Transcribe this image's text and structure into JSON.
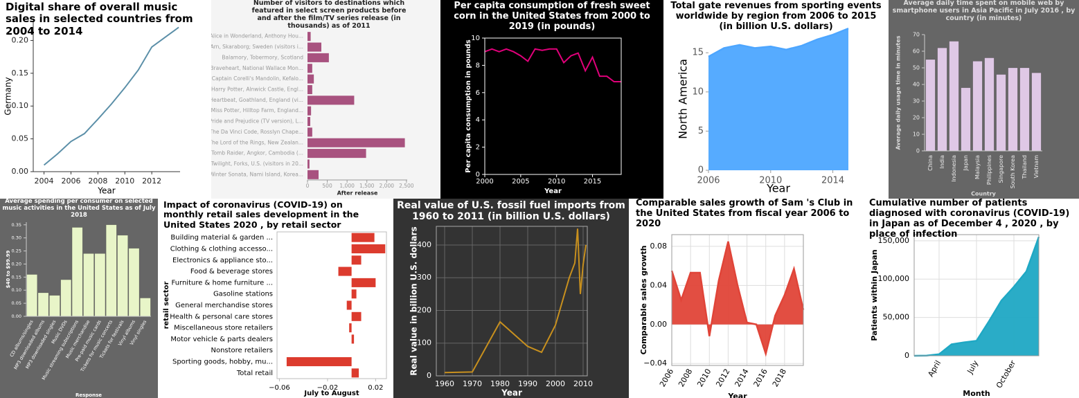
{
  "chart_data": [
    {
      "type": "line",
      "title": "Digital share of overall music sales in selected countries from 2004 to 2014",
      "x_label": "Year",
      "y_label": "Germany",
      "x": [
        2004,
        2005,
        2006,
        2007,
        2008,
        2009,
        2010,
        2011,
        2012,
        2013,
        2014
      ],
      "values": [
        0.01,
        0.027,
        0.046,
        0.058,
        0.08,
        0.103,
        0.128,
        0.155,
        0.19,
        0.205,
        0.22
      ],
      "color": "#5b8fa8",
      "xlim": [
        2003.2,
        2014.1
      ],
      "xticks": [
        2004,
        2006,
        2008,
        2010,
        2012
      ],
      "ylim": [
        0,
        0.23
      ],
      "yticks": [
        {
          "value": 0,
          "label": "0.00"
        },
        {
          "value": 0.05,
          "label": "0.05"
        },
        {
          "value": 0.1,
          "label": "0.10"
        },
        {
          "value": 0.15,
          "label": "0.15"
        },
        {
          "value": 0.2,
          "label": "0.20"
        }
      ],
      "grid": false
    },
    {
      "type": "barh",
      "title": "Number of visitors to destinations which featured in select screen products before and after the film/TV series release (in thousands) as of 2011",
      "x_label": "After release",
      "categories": [
        "Alice in Wonderland, Anthony Hou...",
        "Arn, Skaraborg; Sweden (visitors i...",
        "Balamory, Tobermory, Scotland",
        "Braveheart, National Wallace Mon...",
        "Captain Corelli's Mandolin, Kefalo...",
        "Harry Potter, Alnwick Castle, Engl...",
        "Heartbeat, Goathland, England (vi...",
        "Miss Potter, Hilltop Farm, England...",
        "Pride and Prejudice (TV version), L...",
        "The Da Vinci Code, Rosslyn Chape...",
        "The Lord of the Rings, New Zealan...",
        "Tomb Raider, Angkor, Cambodia (...",
        "Twilight, Forks, U.S. (visitors in 20...",
        "Winter Sonata, Nami Island, Korea..."
      ],
      "values": [
        80,
        350,
        540,
        120,
        160,
        120,
        1180,
        90,
        70,
        120,
        2460,
        1480,
        50,
        280
      ],
      "color": "#a8527f",
      "xlim": [
        0,
        2520
      ],
      "xticks": [
        0,
        500,
        {
          "value": 1000,
          "label": "1,000"
        },
        {
          "value": 1500,
          "label": "1,500"
        },
        {
          "value": 2000,
          "label": "2,000"
        },
        {
          "value": 2500,
          "label": "2,500"
        }
      ],
      "grid": false
    },
    {
      "type": "line",
      "title": "Per capita consumption of fresh sweet corn in the United States from 2000 to 2019 (in pounds)",
      "x_label": "Year",
      "y_label": "Per capita consumption in pounds",
      "x": [
        2000,
        2001,
        2002,
        2003,
        2004,
        2005,
        2006,
        2007,
        2008,
        2009,
        2010,
        2011,
        2012,
        2013,
        2014,
        2015,
        2016,
        2017,
        2018,
        2019
      ],
      "values": [
        9.0,
        9.2,
        9.0,
        9.2,
        9.0,
        8.7,
        8.3,
        9.2,
        9.1,
        9.2,
        9.2,
        8.2,
        8.7,
        8.9,
        7.6,
        8.6,
        7.2,
        7.2,
        6.8,
        6.8
      ],
      "color": "#e0007a",
      "xlim": [
        2000,
        2019
      ],
      "xticks": [
        2000,
        2005,
        2010,
        2015
      ],
      "ylim": [
        0,
        10
      ],
      "yticks": [
        0,
        2,
        4,
        6,
        8,
        10
      ],
      "grid": false
    },
    {
      "type": "area",
      "title": "Total gate revenues from sporting events worldwide by region from 2006 to 2015 (in billion U.S. dollars)",
      "x_label": "Year",
      "y_label": "North America",
      "x": [
        2006,
        2007,
        2008,
        2009,
        2010,
        2011,
        2012,
        2013,
        2014,
        2015
      ],
      "values": [
        14.5,
        15.6,
        16.0,
        15.6,
        15.8,
        15.4,
        15.9,
        16.7,
        17.3,
        18.1
      ],
      "color": "#4da6ff",
      "xlim": [
        2006,
        2015
      ],
      "xticks": [
        2006,
        2010,
        2014
      ],
      "ylim": [
        0,
        18.2
      ],
      "yticks": [
        0,
        5,
        10,
        15
      ],
      "grid": false
    },
    {
      "type": "bar",
      "title": "Average daily time spent on mobile web by smartphone users in Asia Pacific in July 2016 , by country (in minutes)",
      "x_label": "Country",
      "y_label": "Average daily usage time in minutes",
      "categories": [
        "China",
        "India",
        "Indonesia",
        "Japan",
        "Malaysia",
        "Philippines",
        "Singapore",
        "South Korea",
        "Thailand",
        "Vietnam"
      ],
      "values": [
        55,
        62,
        66,
        38,
        54,
        56,
        46,
        50,
        50,
        47
      ],
      "color": "#dfc8e6",
      "ylim": [
        0,
        70
      ],
      "yticks": [
        0,
        10,
        20,
        30,
        40,
        50,
        60,
        70
      ],
      "grid": false
    },
    {
      "type": "bar",
      "title": "Average spending per consumer on selected music activities in the United States as of July 2018",
      "x_label": "Response",
      "y_label": "$40 to $99.99",
      "categories": [
        "CD albums/singles",
        "MP3 downloaded albums",
        "MP3 downloaded singles",
        "Music DVDs",
        "Music streaming subscriptions",
        "Music merchandise",
        "Pre-paid music cards",
        "Tickets for music concerts",
        "Tickets for festivals",
        "Vinyl albums",
        "Vinyl singles"
      ],
      "values": [
        0.16,
        0.09,
        0.08,
        0.14,
        0.34,
        0.24,
        0.24,
        0.35,
        0.31,
        0.26,
        0.07
      ],
      "color": "#e8f5c8",
      "ylim": [
        0,
        0.36
      ],
      "yticks": [
        {
          "value": 0,
          "label": "0.00"
        },
        {
          "value": 0.05,
          "label": "0.05"
        },
        {
          "value": 0.1,
          "label": "0.10"
        },
        {
          "value": 0.15,
          "label": "0.15"
        },
        {
          "value": 0.2,
          "label": "0.20"
        },
        {
          "value": 0.25,
          "label": "0.25"
        },
        {
          "value": 0.3,
          "label": "0.30"
        },
        {
          "value": 0.35,
          "label": "0.35"
        }
      ],
      "grid": false
    },
    {
      "type": "barh",
      "title": "Impact of coronavirus (COVID-19) on monthly retail sales development in the United States 2020 , by retail sector",
      "x_label": "July to August",
      "y_label": "retail sector",
      "categories": [
        "Building material & garden ...",
        "Clothing & clothing accesso...",
        "Electronics & appliance sto...",
        "Food & beverage stores",
        "Furniture & home furniture ...",
        "Gasoline stations",
        "General merchandise stores",
        "Health & personal care stores",
        "Miscellaneous store retailers",
        "Motor vehicle & parts dealers",
        "Nonstore retailers",
        "Sporting goods, hobby, mu...",
        "Total retail"
      ],
      "values": [
        0.019,
        0.028,
        0.008,
        -0.011,
        0.02,
        0.004,
        -0.004,
        0.008,
        -0.002,
        0.002,
        0.0,
        -0.054,
        0.006
      ],
      "color": "#dc3b2e",
      "xlim": [
        -0.062,
        0.029
      ],
      "xticks": [
        {
          "value": -0.06,
          "label": "−0.06"
        },
        {
          "value": -0.02,
          "label": "−0.02"
        },
        0.02
      ],
      "grid": false
    },
    {
      "type": "line",
      "title": "Real value of U.S. fossil fuel imports from 1960 to 2011 (in billion U.S. dollars)",
      "x_label": "Year",
      "y_label": "Real value in billion U.S. dollars",
      "x": [
        1960,
        1970,
        1980,
        1990,
        1995,
        2000,
        2005,
        2007,
        2008,
        2009,
        2010,
        2011
      ],
      "values": [
        10,
        12,
        165,
        90,
        72,
        155,
        300,
        345,
        450,
        250,
        340,
        400
      ],
      "color": "#c8901e",
      "xlim": [
        1957,
        2011.5
      ],
      "xticks": [
        1960,
        1970,
        1980,
        1990,
        2000,
        2010
      ],
      "ylim": [
        0,
        457
      ],
      "yticks": [
        0,
        100,
        200,
        300,
        400
      ],
      "grid": true
    },
    {
      "type": "area",
      "title": "Comparable sales growth of Sam 's Club in the United States from fiscal year 2006 to 2020",
      "x_label": "Year",
      "y_label": "Comparable sales growth",
      "x": [
        2006,
        2007,
        2008,
        2009,
        2010,
        2011,
        2012,
        2013,
        2014,
        2015,
        2016,
        2017,
        2018,
        2019,
        2020
      ],
      "values": [
        0.055,
        0.025,
        0.053,
        0.053,
        -0.012,
        0.045,
        0.085,
        0.04,
        0.002,
        0.0,
        -0.03,
        0.009,
        0.03,
        0.057,
        0.015
      ],
      "color": "#e04438",
      "xlim": [
        2006,
        2020
      ],
      "xticks": [
        2006,
        2008,
        2010,
        2012,
        2014,
        2016,
        2018
      ],
      "ylim": [
        -0.042,
        0.092
      ],
      "yticks": [
        {
          "value": -0.04,
          "label": "−0.04"
        },
        {
          "value": 0,
          "label": "0.00"
        },
        0.04,
        0.08
      ],
      "grid": true
    },
    {
      "type": "area",
      "title": "Cumulative number of patients diagnosed with coronavirus (COVID-19) in Japan as of December 4 , 2020 , by place of infection",
      "x_label": "Month",
      "y_label": "Patients within Japan",
      "categories": [
        null,
        null,
        "April",
        null,
        null,
        "July",
        null,
        null,
        "October",
        null,
        null
      ],
      "values": [
        10,
        200,
        2000,
        15000,
        17500,
        19500,
        45000,
        72000,
        90000,
        110000,
        155000
      ],
      "color": "#1fa8c4",
      "ylim": [
        0,
        158000
      ],
      "yticks": [
        0,
        {
          "value": 50000,
          "label": "50,000"
        },
        {
          "value": 100000,
          "label": "100,000"
        },
        {
          "value": 150000,
          "label": "150,000"
        }
      ],
      "grid": true
    }
  ]
}
